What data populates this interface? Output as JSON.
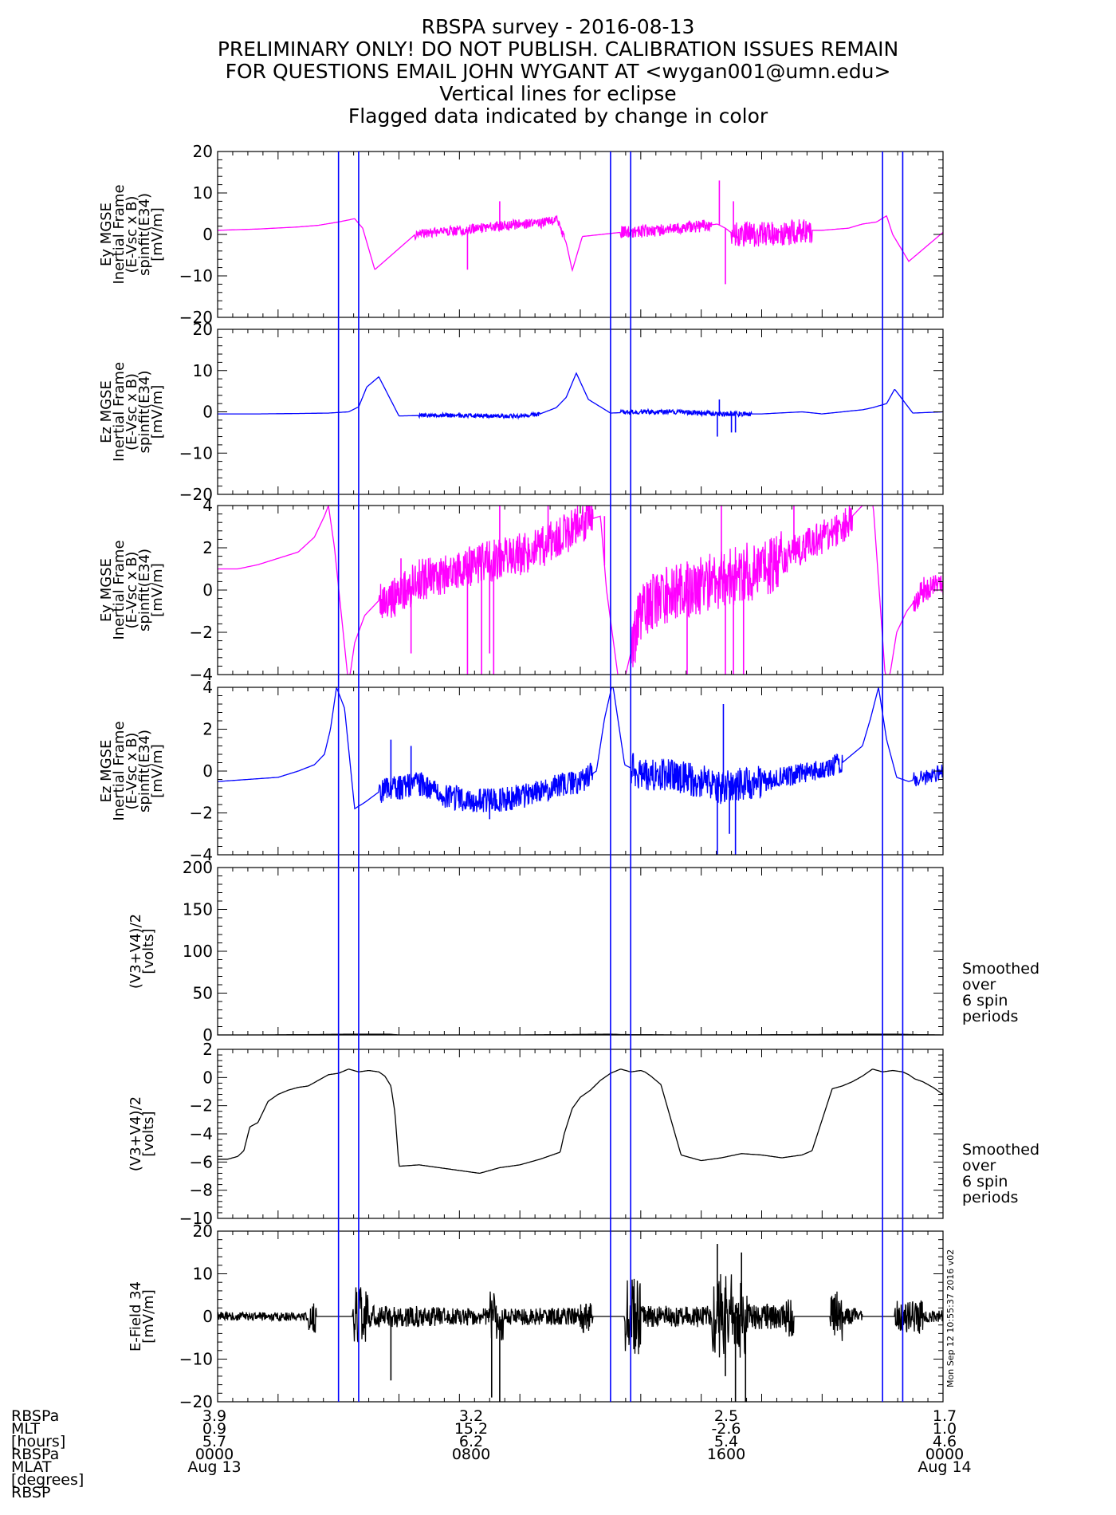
{
  "title_lines": [
    "RBSPA survey - 2016-08-13",
    "PRELIMINARY ONLY! DO NOT PUBLISH. CALIBRATION ISSUES REMAIN",
    "FOR QUESTIONS EMAIL JOHN WYGANT AT <wygan001@umn.edu>",
    "Vertical lines for eclipse",
    "Flagged data indicated by change in color"
  ],
  "colors": {
    "magenta": "#ff00ff",
    "blue": "#0000ff",
    "black": "#000000",
    "eclipse": "#0000ff"
  },
  "chart_data": [
    {
      "type": "line",
      "ylabel": [
        "Ey MGSE",
        "Inertial Frame",
        "(E-Vsc x B)",
        "spinfit(E34)",
        "[mV/m]"
      ],
      "ylim": [
        -20,
        20
      ],
      "yticks": [
        -20,
        -10,
        0,
        10,
        20
      ],
      "series": [
        {
          "color": "#ff00ff",
          "x": [
            0,
            2,
            4,
            5,
            6,
            6.8,
            7.2,
            7.8,
            9.8,
            10.8,
            12,
            13,
            14,
            15,
            16,
            16.8,
            17.3,
            17.6,
            18.1,
            20,
            22,
            23,
            24,
            24.8,
            25.2,
            25.6,
            26.3,
            27.7,
            28.5,
            29.3,
            30,
            31.3,
            32,
            32.7,
            33.2,
            33.5,
            34.3,
            36
          ],
          "y": [
            1,
            1.3,
            1.8,
            2.2,
            3,
            3.8,
            1.5,
            -8.5,
            0,
            0.5,
            1,
            1.5,
            2,
            2.5,
            2.7,
            3.5,
            -2,
            -8.7,
            -0.5,
            0.5,
            1,
            1.5,
            2,
            2.5,
            1.5,
            0,
            0,
            0,
            0.5,
            1,
            1,
            1.5,
            2.5,
            3,
            4.5,
            0,
            -6.5,
            0.5
          ],
          "noise": [
            [
              9.8,
              17.2,
              1.2
            ],
            [
              20,
              24.5,
              1.5
            ],
            [
              25.5,
              29.5,
              3.0
            ]
          ],
          "spikes": [
            [
              12.4,
              -8.5
            ],
            [
              14,
              8
            ],
            [
              24.9,
              13
            ],
            [
              25.2,
              -12
            ],
            [
              25.6,
              8
            ]
          ]
        }
      ]
    },
    {
      "type": "line",
      "ylabel": [
        "Ez MGSE",
        "Inertial Frame",
        "(E-Vsc x B)",
        "spinfit(E34)",
        "[mV/m]"
      ],
      "ylim": [
        -20,
        20
      ],
      "yticks": [
        -20,
        -10,
        0,
        10,
        20
      ],
      "series": [
        {
          "color": "#0000ff",
          "x": [
            0,
            2,
            4,
            5.5,
            6.5,
            7,
            7.4,
            8,
            9,
            11,
            13,
            15,
            16,
            16.8,
            17.3,
            17.8,
            18.4,
            19.5,
            21,
            23,
            25,
            27,
            29,
            30,
            31,
            32,
            32.5,
            33.2,
            33.6,
            34.5,
            36
          ],
          "y": [
            -0.5,
            -0.5,
            -0.4,
            -0.3,
            0,
            1.2,
            6,
            8.5,
            -1,
            -0.8,
            -1,
            -1,
            -0.5,
            1,
            3.5,
            9.4,
            3,
            -0.3,
            0,
            0,
            -0.5,
            -0.5,
            0,
            -0.5,
            0,
            0.5,
            1,
            2,
            5.5,
            -0.3,
            0
          ],
          "noise": [
            [
              10,
              16,
              0.5
            ],
            [
              20,
              26.5,
              0.6
            ]
          ],
          "spikes": [
            [
              24.8,
              -6
            ],
            [
              24.9,
              3
            ],
            [
              25.5,
              -5
            ],
            [
              25.7,
              -5
            ]
          ]
        }
      ]
    },
    {
      "type": "line",
      "ylabel": [
        "Ey MGSE",
        "Inertial Frame",
        "(E-Vsc x B)",
        "spinfit(E34)",
        "[mV/m]"
      ],
      "ylim": [
        -4,
        4
      ],
      "yticks": [
        -4,
        -2,
        0,
        2,
        4
      ],
      "series": [
        {
          "color": "#ff00ff",
          "x": [
            0,
            1,
            2,
            3,
            4,
            4.8,
            5.3,
            5.5,
            5.8,
            6.5,
            6.8,
            7.3,
            8,
            9,
            10,
            11,
            12,
            13,
            14,
            15,
            16,
            17,
            18,
            19,
            19.3,
            20,
            21,
            22,
            23,
            24,
            25,
            26,
            27,
            28,
            29,
            30,
            31,
            32,
            32.5,
            33.2,
            33.7,
            34.2,
            35,
            36
          ],
          "y": [
            1,
            1,
            1.2,
            1.5,
            1.8,
            2.5,
            3.5,
            4,
            2,
            -4.5,
            -2.5,
            -1.2,
            -0.5,
            -0.3,
            0.5,
            0.7,
            1,
            1.2,
            1.5,
            1.7,
            2,
            2.5,
            3.2,
            3.5,
            0,
            -5,
            -1,
            -0.3,
            0,
            0.2,
            0.5,
            0.8,
            1,
            1.5,
            2,
            2.5,
            3,
            4,
            4.5,
            -5,
            -2,
            -1,
            0,
            0.3
          ],
          "noise": [
            [
              8,
              18.6,
              1.0
            ],
            [
              20.5,
              28,
              1.4
            ],
            [
              28,
              31.5,
              0.8
            ],
            [
              34.5,
              36,
              0.6
            ]
          ],
          "spikes": [
            [
              9.1,
              1.5
            ],
            [
              9.6,
              -3
            ],
            [
              12.4,
              -4
            ],
            [
              13.1,
              -4
            ],
            [
              13.5,
              -3
            ],
            [
              13.7,
              -4
            ],
            [
              14,
              4
            ],
            [
              16.4,
              4
            ],
            [
              19.2,
              3.5
            ],
            [
              23.3,
              -4
            ],
            [
              25,
              4
            ],
            [
              25.2,
              -4
            ],
            [
              25.6,
              -4
            ],
            [
              26.1,
              -4
            ],
            [
              28.6,
              4
            ]
          ]
        }
      ]
    },
    {
      "type": "line",
      "ylabel": [
        "Ez MGSE",
        "Inertial Frame",
        "(E-Vsc x B)",
        "spinfit(E34)",
        "[mV/m]"
      ],
      "ylim": [
        -4,
        4
      ],
      "yticks": [
        -4,
        -2,
        0,
        2,
        4
      ],
      "series": [
        {
          "color": "#0000ff",
          "x": [
            0,
            1.5,
            3,
            4,
            4.8,
            5.3,
            5.6,
            5.9,
            6.3,
            6.8,
            7.3,
            8,
            9,
            10,
            11,
            12,
            13,
            14,
            15,
            16,
            17,
            18,
            18.8,
            19.2,
            19.6,
            20.2,
            21,
            22,
            23,
            24,
            25,
            26,
            27,
            28,
            29,
            30,
            31,
            32,
            32.4,
            32.8,
            33.2,
            33.7,
            34.3,
            35,
            36
          ],
          "y": [
            -0.5,
            -0.4,
            -0.3,
            0,
            0.3,
            0.8,
            2,
            4,
            3,
            -1.8,
            -1.5,
            -1,
            -0.8,
            -0.6,
            -1.2,
            -1.3,
            -1.4,
            -1.4,
            -1.2,
            -1.0,
            -0.7,
            -0.5,
            0,
            2.5,
            4.2,
            0.3,
            -0.1,
            -0.2,
            -0.3,
            -0.5,
            -0.8,
            -0.6,
            -0.5,
            -0.3,
            -0.1,
            0.1,
            0.4,
            1.2,
            2.5,
            4,
            1.5,
            -0.3,
            -0.5,
            -0.3,
            0
          ],
          "noise": [
            [
              8,
              18.6,
              0.6
            ],
            [
              20.5,
              27,
              0.8
            ],
            [
              27,
              31,
              0.5
            ],
            [
              34.5,
              36,
              0.4
            ]
          ],
          "spikes": [
            [
              8.6,
              1.5
            ],
            [
              9.6,
              1.2
            ],
            [
              10,
              -1
            ],
            [
              13.5,
              -2.3
            ],
            [
              24.8,
              -4
            ],
            [
              25.1,
              3.2
            ],
            [
              25.4,
              -3
            ],
            [
              25.7,
              -4
            ]
          ]
        }
      ]
    },
    {
      "type": "line",
      "ylabel": [
        "(V3+V4)/2",
        "[volts]"
      ],
      "ylim": [
        0,
        200
      ],
      "yticks": [
        0,
        50,
        100,
        150,
        200
      ],
      "series": [
        {
          "color": "#000000",
          "x": [
            0,
            2,
            5,
            6.5,
            8,
            8.5,
            9,
            12,
            15,
            17.5,
            19.5,
            20,
            23,
            26,
            29,
            32.5,
            33.5,
            34.5,
            36
          ],
          "y": [
            0,
            0,
            0.5,
            1,
            1,
            1,
            0,
            0,
            0,
            0.5,
            1,
            0.5,
            0,
            0,
            0.5,
            1,
            1,
            0.5,
            0
          ],
          "noise": [],
          "spikes": []
        }
      ],
      "note": [
        "Smoothed",
        "over",
        "6 spin",
        "periods"
      ]
    },
    {
      "type": "line",
      "ylabel": [
        "(V3+V4)/2",
        "[volts]"
      ],
      "ylim": [
        -10,
        2
      ],
      "yticks": [
        -10,
        -8,
        -6,
        -4,
        -2,
        0,
        2
      ],
      "series": [
        {
          "color": "#000000",
          "x": [
            0,
            0.5,
            1,
            1.3,
            1.6,
            2,
            2.5,
            3,
            3.5,
            4,
            4.5,
            5,
            5.5,
            6,
            6.5,
            7,
            7.5,
            8,
            8.3,
            8.6,
            8.8,
            9,
            10,
            11,
            12,
            13,
            14,
            15,
            16,
            17,
            17.2,
            17.6,
            18,
            18.5,
            19,
            19.5,
            20,
            20.5,
            21,
            21.2,
            21.5,
            22,
            23,
            24,
            25,
            26,
            27,
            28,
            29,
            29.5,
            30,
            30.5,
            31,
            31.5,
            32,
            32.5,
            33,
            33.5,
            34,
            34.3,
            34.6,
            35,
            35.5,
            36
          ],
          "y": [
            -5.8,
            -5.8,
            -5.6,
            -5.2,
            -3.5,
            -3.2,
            -1.7,
            -1.2,
            -0.9,
            -0.7,
            -0.6,
            -0.2,
            0.2,
            0.3,
            0.6,
            0.4,
            0.5,
            0.4,
            0.1,
            -0.6,
            -2.5,
            -6.3,
            -6.2,
            -6.4,
            -6.6,
            -6.8,
            -6.4,
            -6.2,
            -5.8,
            -5.3,
            -4.0,
            -2.2,
            -1.4,
            -0.9,
            -0.2,
            0.3,
            0.6,
            0.4,
            0.5,
            0.4,
            0.1,
            -0.5,
            -5.5,
            -5.9,
            -5.7,
            -5.4,
            -5.5,
            -5.7,
            -5.5,
            -5.2,
            -3.0,
            -0.8,
            -0.6,
            -0.3,
            0.1,
            0.6,
            0.4,
            0.5,
            0.4,
            0.2,
            -0.1,
            -0.3,
            -0.7,
            -1.2
          ],
          "noise": [],
          "spikes": []
        }
      ],
      "note": [
        "Smoothed",
        "over",
        "6 spin",
        "periods"
      ]
    },
    {
      "type": "line",
      "ylabel": [
        "E-Field 34",
        "[mV/m]"
      ],
      "ylim": [
        -20,
        20
      ],
      "yticks": [
        -20,
        -10,
        0,
        10,
        20
      ],
      "series": [
        {
          "color": "#000000",
          "x": [
            0,
            36
          ],
          "y": [
            0,
            0
          ],
          "noise": [
            [
              0,
              4.5,
              1.0
            ],
            [
              4.5,
              4.9,
              4.0
            ],
            [
              6.7,
              7.5,
              7.0
            ],
            [
              7.5,
              11,
              2.5
            ],
            [
              11,
              13.5,
              2.0
            ],
            [
              13.5,
              14.2,
              6.0
            ],
            [
              14.2,
              18,
              2.0
            ],
            [
              18,
              18.6,
              4.0
            ],
            [
              20.2,
              21,
              9.0
            ],
            [
              21,
              24.5,
              2.5
            ],
            [
              24.5,
              26.3,
              10.0
            ],
            [
              26.3,
              28.2,
              3.0
            ],
            [
              28.2,
              28.6,
              5.0
            ],
            [
              30.4,
              31,
              6.0
            ],
            [
              31,
              32,
              2.0
            ],
            [
              33.6,
              35,
              4.0
            ],
            [
              35,
              36,
              1.5
            ]
          ],
          "spikes": [
            [
              8.6,
              -15
            ],
            [
              13.6,
              -19
            ],
            [
              14,
              -20
            ],
            [
              24.8,
              17
            ],
            [
              25.2,
              -14
            ],
            [
              25.7,
              -20
            ],
            [
              26,
              15
            ],
            [
              26.2,
              -20
            ]
          ]
        }
      ]
    }
  ],
  "eclipse_hours": [
    6.0,
    7.0,
    19.5,
    20.5,
    33.0,
    34.0
  ],
  "x_axis": {
    "range_hours": [
      0,
      36
    ],
    "labels": [
      "RBSPa",
      "MLT",
      "[hours]",
      "RBSPa",
      "MLAT",
      "[degrees]",
      "RBSP"
    ],
    "ticks": [
      {
        "hour": 0,
        "mlt": "3.9",
        "mlat": "0.9",
        "l": "5.7",
        "time": "0000",
        "date": "Aug 13"
      },
      {
        "hour": 12,
        "mlt": "3.2",
        "mlat": "15.2",
        "l": "6.2",
        "time": "0800",
        "date": ""
      },
      {
        "hour": 24,
        "mlt": "2.5",
        "mlat": "-2.6",
        "l": "5.4",
        "time": "1600",
        "date": ""
      },
      {
        "hour": 36,
        "mlt": "1.7",
        "mlat": "1.0",
        "l": "4.6",
        "time": "0000",
        "date": "Aug 14"
      }
    ]
  },
  "timestamp": "Mon Sep 12 10:55:37 2016 v02"
}
